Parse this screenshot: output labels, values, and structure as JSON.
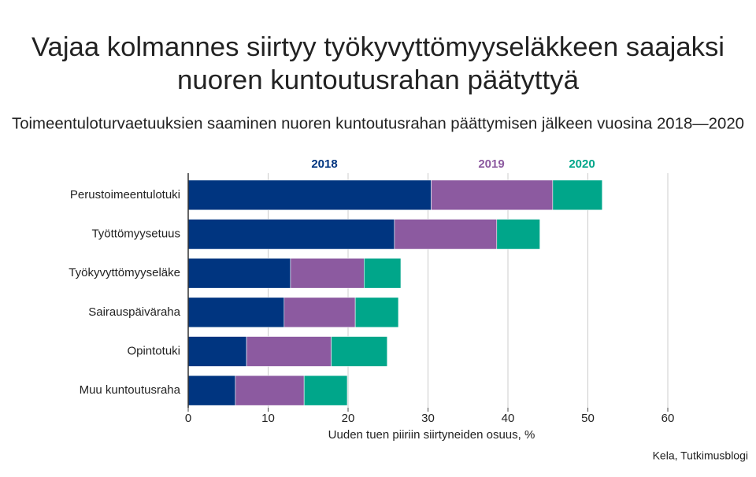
{
  "chart_data": {
    "type": "stacked-bar-horizontal",
    "title": [
      "Vajaa kolmannes siirtyy työkyvyttömyyseläkkeen saajaksi",
      "nuoren kuntoutusrahan päätyttyä"
    ],
    "subtitle": "Toimeentuloturvaetuuksien saaminen nuoren kuntoutusrahan päättymisen jälkeen vuosina 2018—2020",
    "categories": [
      "Perustoimeentulotuki",
      "Työttömyysetuus",
      "Työkyvyttömyyseläke",
      "Sairauspäiväraha",
      "Opintotuki",
      "Muu kuntoutusraha"
    ],
    "series": [
      {
        "name": "2018",
        "color": "#003580",
        "values": [
          30.4,
          25.8,
          12.8,
          12.0,
          7.3,
          5.9
        ]
      },
      {
        "name": "2019",
        "color": "#8c5aa0",
        "values": [
          15.2,
          12.8,
          9.2,
          8.9,
          10.6,
          8.6
        ]
      },
      {
        "name": "2020",
        "color": "#00a68a",
        "values": [
          6.2,
          5.4,
          4.6,
          5.4,
          7.0,
          5.4
        ]
      }
    ],
    "xlabel": "Uuden tuen piiriin siirtyneiden osuus, %",
    "xlim": [
      0,
      60
    ],
    "xticks": [
      0,
      10,
      20,
      30,
      40,
      50,
      60
    ],
    "grid": true,
    "source": "Kela, Tutkimusblogi"
  }
}
